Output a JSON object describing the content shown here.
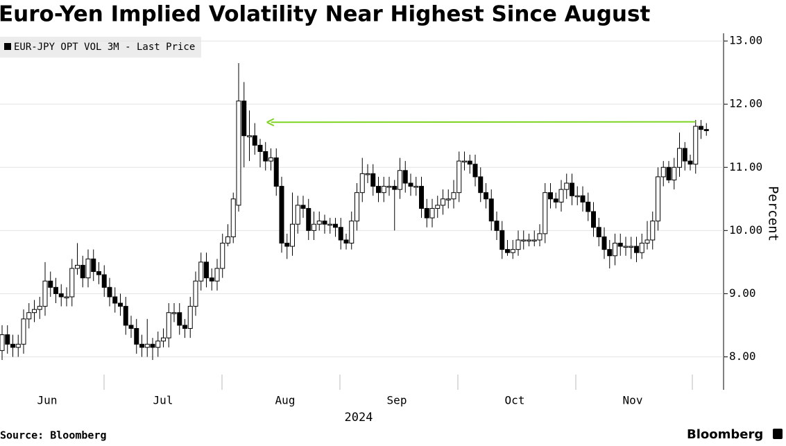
{
  "chart_data": {
    "type": "candlestick",
    "title": "Euro-Yen Implied Volatility Near Highest Since August",
    "legend": "EUR-JPY OPT VOL 3M - Last Price",
    "y_label": "Percent",
    "x_labels": [
      "Jun",
      "Jul",
      "Aug",
      "Sep",
      "Oct",
      "Nov"
    ],
    "x_sublabel": "2024",
    "source": "Source: Bloomberg",
    "brand": "Bloomberg",
    "up_color": "#ffffff",
    "down_color": "#000000",
    "grid": true,
    "ylim": [
      7.5,
      13.1
    ],
    "yticks": [
      {
        "value": 8,
        "label": "8.00"
      },
      {
        "value": 9,
        "label": "9.00"
      },
      {
        "value": 10,
        "label": "10.00"
      },
      {
        "value": 11,
        "label": "11.00"
      },
      {
        "value": 12,
        "label": "12.00"
      },
      {
        "value": 13,
        "label": "13.00"
      }
    ],
    "reference_arrow": {
      "value": 11.72,
      "color": "#7ed321"
    },
    "open": [
      8.1,
      8.35,
      8.2,
      8.15,
      8.2,
      8.6,
      8.7,
      8.75,
      8.8,
      9.2,
      9.1,
      9.0,
      8.95,
      8.95,
      9.4,
      9.45,
      9.25,
      9.55,
      9.35,
      9.3,
      9.1,
      8.95,
      8.85,
      8.8,
      8.5,
      8.45,
      8.2,
      8.15,
      8.2,
      8.15,
      8.25,
      8.3,
      8.7,
      8.7,
      8.5,
      8.45,
      8.8,
      9.2,
      9.5,
      9.25,
      9.2,
      9.4,
      9.8,
      9.9,
      10.4,
      12.05,
      11.5,
      11.5,
      11.35,
      11.25,
      11.1,
      11.15,
      10.7,
      9.8,
      9.75,
      10.1,
      10.4,
      10.35,
      10.0,
      10.1,
      10.15,
      10.1,
      10.1,
      10.05,
      9.85,
      9.8,
      10.15,
      10.6,
      10.9,
      10.9,
      10.7,
      10.6,
      10.7,
      10.7,
      10.65,
      10.95,
      10.75,
      10.7,
      10.7,
      10.35,
      10.2,
      10.35,
      10.4,
      10.5,
      10.5,
      10.6,
      11.1,
      11.1,
      11.05,
      10.85,
      10.6,
      10.5,
      10.15,
      10.0,
      9.7,
      9.65,
      9.7,
      9.85,
      9.85,
      9.85,
      9.85,
      9.95,
      10.6,
      10.5,
      10.45,
      10.65,
      10.75,
      10.55,
      10.55,
      10.45,
      10.3,
      10.05,
      9.9,
      9.7,
      9.6,
      9.8,
      9.75,
      9.75,
      9.75,
      9.65,
      9.8,
      9.85,
      10.15,
      10.85,
      11.0,
      10.8,
      11.0,
      11.3,
      11.1,
      11.05,
      11.65,
      11.6
    ],
    "high": [
      8.5,
      8.5,
      8.35,
      8.35,
      8.75,
      8.85,
      8.9,
      8.95,
      9.5,
      9.35,
      9.25,
      9.15,
      9.1,
      9.55,
      9.8,
      9.6,
      9.7,
      9.7,
      9.5,
      9.45,
      9.25,
      9.1,
      9.0,
      8.95,
      8.65,
      8.6,
      8.35,
      8.6,
      8.3,
      8.4,
      8.45,
      8.85,
      8.85,
      8.85,
      8.6,
      8.95,
      9.35,
      9.65,
      9.65,
      9.4,
      9.55,
      9.95,
      10.1,
      10.6,
      12.65,
      12.35,
      11.9,
      11.7,
      11.45,
      11.4,
      11.3,
      11.3,
      10.85,
      9.95,
      10.6,
      10.55,
      10.55,
      10.5,
      10.3,
      10.3,
      10.25,
      10.2,
      10.2,
      10.2,
      9.95,
      10.3,
      10.75,
      11.15,
      11.05,
      11.05,
      10.85,
      10.85,
      10.85,
      10.8,
      11.15,
      11.1,
      10.9,
      10.85,
      10.85,
      10.5,
      10.5,
      10.55,
      10.65,
      10.65,
      10.8,
      11.25,
      11.25,
      11.2,
      11.2,
      11.0,
      10.75,
      10.65,
      10.3,
      10.15,
      9.85,
      9.85,
      10.0,
      10.0,
      9.95,
      10.0,
      10.1,
      10.75,
      10.75,
      10.6,
      10.8,
      10.9,
      10.9,
      10.7,
      10.7,
      10.6,
      10.45,
      10.2,
      10.05,
      9.85,
      9.95,
      9.95,
      9.9,
      9.9,
      9.9,
      9.95,
      10.15,
      10.3,
      11.0,
      11.1,
      11.1,
      11.15,
      11.55,
      11.4,
      11.2,
      11.75,
      11.75,
      11.7
    ],
    "low": [
      7.95,
      8.05,
      8.0,
      8.0,
      8.05,
      8.45,
      8.55,
      8.6,
      8.65,
      8.95,
      8.85,
      8.8,
      8.8,
      8.8,
      9.3,
      9.1,
      9.1,
      9.2,
      9.15,
      8.95,
      8.8,
      8.7,
      8.65,
      8.35,
      8.3,
      8.05,
      8.0,
      8.0,
      7.95,
      8.0,
      8.15,
      8.15,
      8.55,
      8.35,
      8.3,
      8.3,
      8.65,
      9.05,
      9.1,
      9.05,
      9.05,
      9.25,
      9.75,
      9.8,
      10.3,
      11.0,
      11.1,
      11.2,
      11.0,
      10.95,
      10.95,
      10.55,
      9.65,
      9.55,
      9.6,
      9.95,
      10.2,
      9.85,
      9.85,
      10.0,
      9.95,
      9.95,
      9.9,
      9.7,
      9.7,
      9.7,
      10.0,
      10.45,
      10.75,
      10.55,
      10.45,
      10.45,
      10.55,
      10.0,
      10.5,
      10.6,
      10.55,
      10.55,
      10.2,
      10.05,
      10.05,
      10.2,
      10.25,
      10.35,
      10.35,
      10.45,
      10.95,
      10.9,
      10.7,
      10.45,
      10.35,
      10.0,
      9.85,
      9.55,
      9.6,
      9.55,
      9.6,
      9.7,
      9.75,
      9.75,
      9.75,
      9.8,
      10.35,
      10.35,
      10.3,
      10.5,
      10.4,
      10.4,
      10.3,
      10.15,
      9.9,
      9.75,
      9.55,
      9.4,
      9.45,
      9.6,
      9.6,
      9.55,
      9.5,
      9.55,
      9.7,
      9.7,
      10.0,
      10.7,
      10.75,
      10.65,
      10.85,
      10.95,
      10.95,
      10.9,
      11.45,
      11.5
    ],
    "close": [
      8.35,
      8.2,
      8.15,
      8.2,
      8.6,
      8.7,
      8.75,
      8.8,
      9.2,
      9.1,
      9.0,
      8.95,
      8.95,
      9.4,
      9.45,
      9.25,
      9.55,
      9.35,
      9.3,
      9.1,
      8.95,
      8.85,
      8.8,
      8.5,
      8.45,
      8.2,
      8.15,
      8.2,
      8.15,
      8.25,
      8.3,
      8.7,
      8.7,
      8.5,
      8.45,
      8.8,
      9.2,
      9.5,
      9.25,
      9.2,
      9.4,
      9.8,
      9.9,
      10.5,
      12.05,
      11.5,
      11.5,
      11.35,
      11.25,
      11.1,
      11.15,
      10.7,
      9.8,
      9.75,
      10.1,
      10.4,
      10.35,
      10.0,
      10.1,
      10.15,
      10.1,
      10.1,
      10.05,
      9.85,
      9.8,
      10.15,
      10.6,
      10.9,
      10.9,
      10.7,
      10.6,
      10.7,
      10.7,
      10.65,
      10.95,
      10.75,
      10.7,
      10.7,
      10.35,
      10.2,
      10.35,
      10.4,
      10.5,
      10.5,
      10.6,
      11.1,
      11.1,
      11.05,
      10.85,
      10.6,
      10.5,
      10.15,
      10.0,
      9.7,
      9.65,
      9.7,
      9.85,
      9.85,
      9.85,
      9.85,
      9.95,
      10.6,
      10.5,
      10.45,
      10.65,
      10.75,
      10.55,
      10.55,
      10.45,
      10.3,
      10.05,
      9.9,
      9.7,
      9.6,
      9.8,
      9.75,
      9.75,
      9.75,
      9.65,
      9.8,
      9.85,
      10.15,
      10.85,
      11.0,
      10.8,
      11.0,
      11.3,
      11.1,
      11.05,
      11.65,
      11.6,
      11.58
    ]
  }
}
